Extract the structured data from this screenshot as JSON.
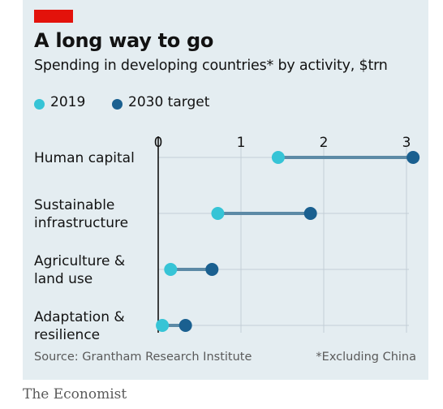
{
  "title": "A long way to go",
  "subtitle": "Spending in developing countries* by activity, $trn",
  "legend": [
    {
      "label": "2019",
      "color": "#36c4d6"
    },
    {
      "label": "2030 target",
      "color": "#1a6090"
    }
  ],
  "source": "Source: Grantham Research Institute",
  "footnote": "*Excluding China",
  "brand": "The Economist",
  "colors": {
    "accent": "#e3120b",
    "background": "#e4edf1",
    "connector": "#5c8aa6"
  },
  "chart_data": {
    "type": "dumbbell",
    "title": "A long way to go",
    "subtitle": "Spending in developing countries* by activity, $trn",
    "xlim": [
      0,
      3
    ],
    "xticks": [
      0,
      1,
      2,
      3
    ],
    "grid": true,
    "legend_placement": "top-left",
    "categories": [
      [
        "Human capital"
      ],
      [
        "Sustainable",
        "infrastructure"
      ],
      [
        "Agriculture &",
        "land use"
      ],
      [
        "Adaptation &",
        "resilience"
      ]
    ],
    "series": [
      {
        "name": "2019",
        "color": "#36c4d6",
        "values": [
          1.45,
          0.72,
          0.15,
          0.05
        ]
      },
      {
        "name": "2030 target",
        "color": "#1a6090",
        "values": [
          3.08,
          1.84,
          0.65,
          0.33
        ]
      }
    ]
  }
}
